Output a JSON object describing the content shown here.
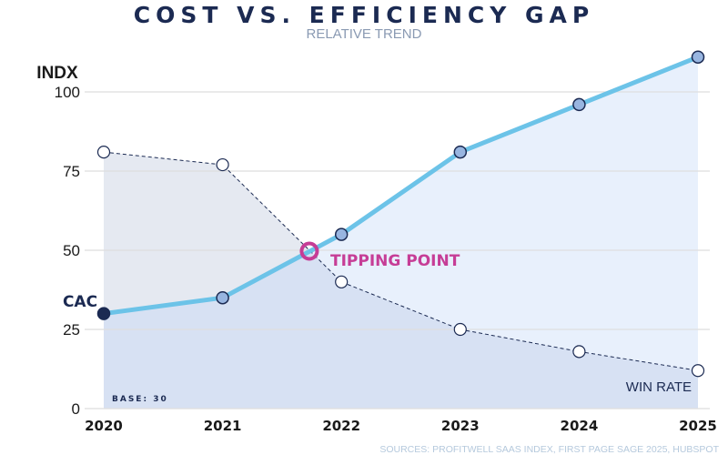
{
  "chart_data": {
    "type": "line",
    "title": "COST VS. EFFICIENCY GAP",
    "subtitle": "RELATIVE TREND",
    "ylabel": "INDX",
    "xlabel": "",
    "x": [
      2020,
      2021,
      2022,
      2023,
      2024,
      2025
    ],
    "xticks": [
      "2020",
      "2021",
      "2022",
      "2023",
      "2024",
      "2025"
    ],
    "ylim": [
      0,
      100
    ],
    "yticks": [
      "0",
      "25",
      "50",
      "75",
      "100"
    ],
    "grid": true,
    "series": [
      {
        "name": "CAC",
        "values": [
          30,
          35,
          55,
          81,
          96,
          111
        ],
        "color": "#6cc3e8",
        "style": "solid",
        "area_color": "#eaf1fb"
      },
      {
        "name": "WIN RATE",
        "values": [
          81,
          77,
          40,
          25,
          18,
          12
        ],
        "color": "#1b2a52",
        "style": "dashed",
        "area_color": "#e5e9f1"
      }
    ],
    "annotations": [
      {
        "text": "TIPPING POINT",
        "x": 2021.73,
        "y": 50,
        "color": "#c63d96"
      },
      {
        "text": "BASE: 30"
      }
    ],
    "source": "SOURCES: PROFITWELL SAAS INDEX, FIRST PAGE SAGE 2025, HUBSPOT"
  }
}
